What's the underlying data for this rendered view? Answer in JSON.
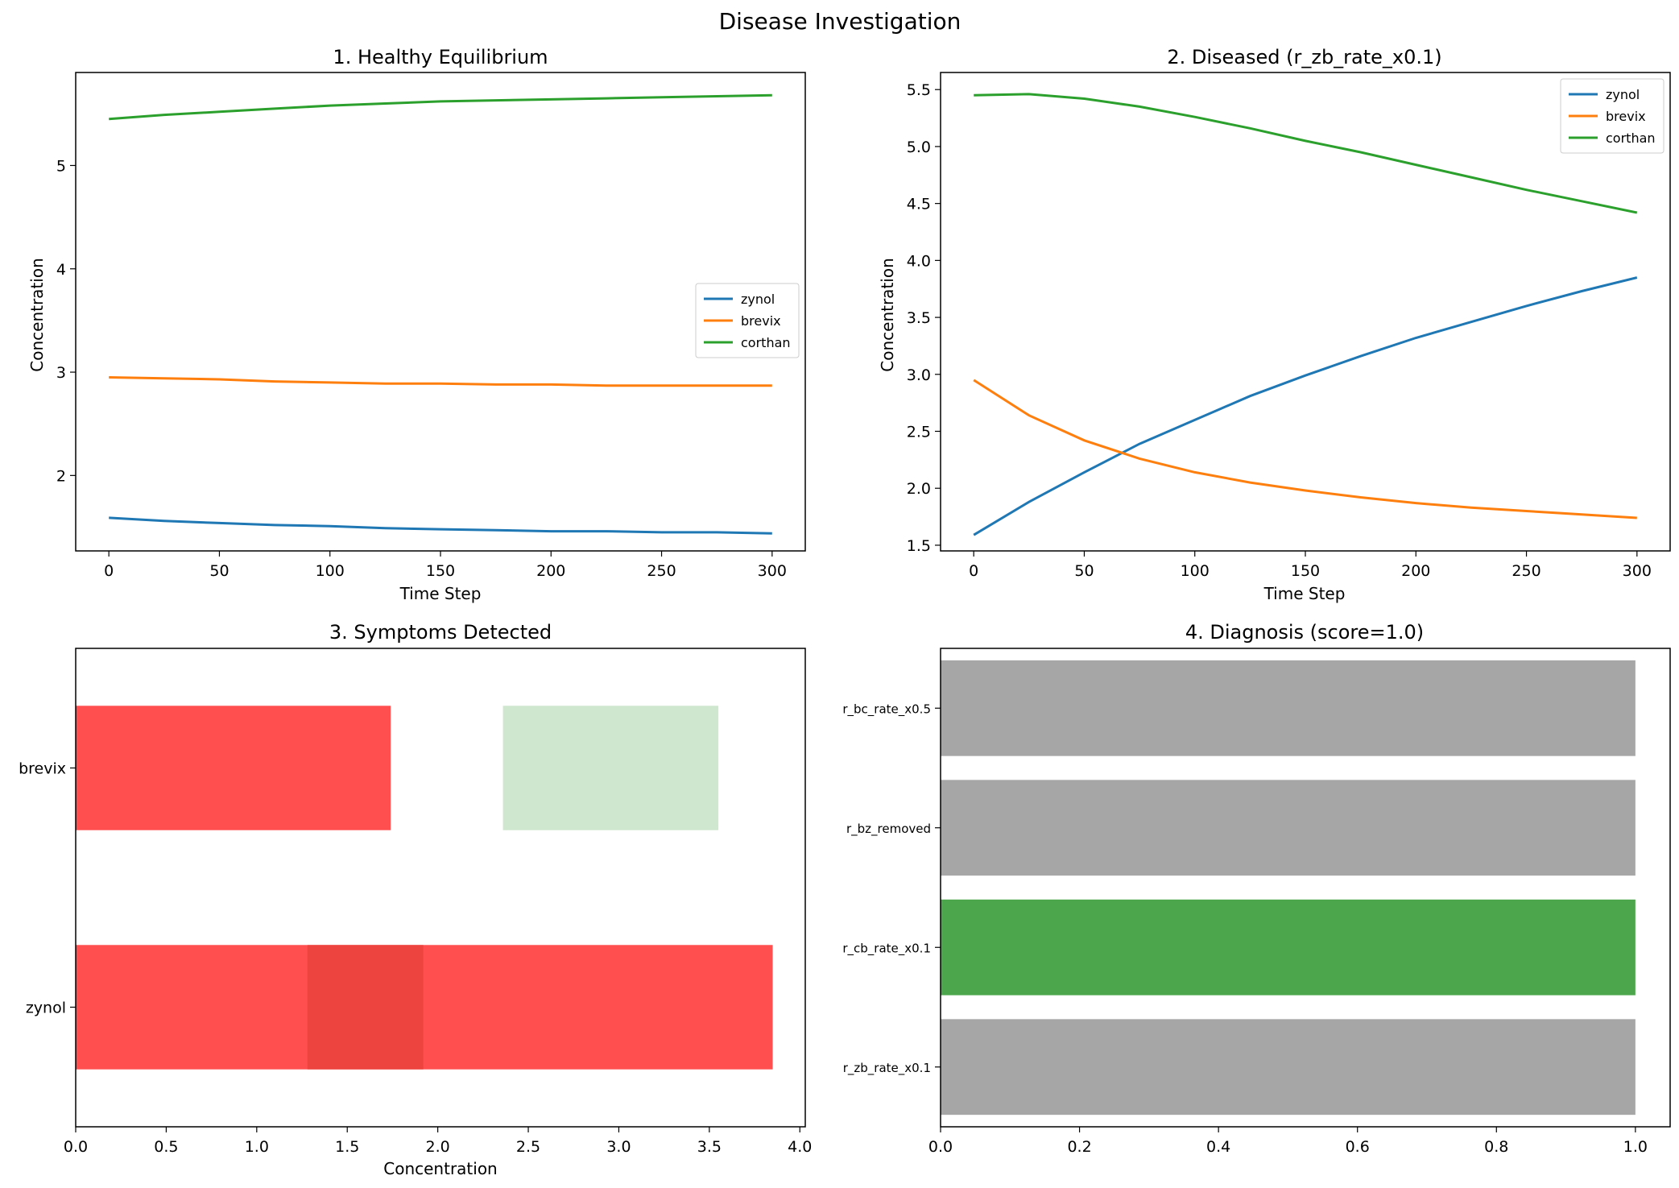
{
  "figure": {
    "title": "Disease Investigation"
  },
  "colors": {
    "zynol": "#1f77b4",
    "brevix": "#ff7f0e",
    "corthan": "#2ca02c",
    "symptom": "#ff4f4f",
    "symptom_overlap": "#ee4440",
    "healthy_range": "#cfe6cf",
    "candidate": "#a6a6a6",
    "correct": "#4ca64c"
  },
  "chart_data": [
    {
      "type": "line",
      "title": "1. Healthy Equilibrium",
      "xlabel": "Time Step",
      "ylabel": "Concentration",
      "xlim": [
        -15,
        315
      ],
      "ylim": [
        1.27,
        5.9
      ],
      "xticks": [
        "0",
        "50",
        "100",
        "150",
        "200",
        "250",
        "300"
      ],
      "yticks": [
        "2",
        "3",
        "4",
        "5"
      ],
      "legend": "center-right",
      "x": [
        0,
        25,
        50,
        75,
        100,
        125,
        150,
        175,
        200,
        225,
        250,
        275,
        300
      ],
      "series": [
        {
          "name": "zynol",
          "color": "zynol",
          "values": [
            1.59,
            1.56,
            1.54,
            1.52,
            1.51,
            1.49,
            1.48,
            1.47,
            1.46,
            1.46,
            1.45,
            1.45,
            1.44
          ]
        },
        {
          "name": "brevix",
          "color": "brevix",
          "values": [
            2.95,
            2.94,
            2.93,
            2.91,
            2.9,
            2.89,
            2.89,
            2.88,
            2.88,
            2.87,
            2.87,
            2.87,
            2.87
          ]
        },
        {
          "name": "corthan",
          "color": "corthan",
          "values": [
            5.45,
            5.49,
            5.52,
            5.55,
            5.58,
            5.6,
            5.62,
            5.63,
            5.64,
            5.65,
            5.66,
            5.67,
            5.68
          ]
        }
      ]
    },
    {
      "type": "line",
      "title": "2. Diseased (r_zb_rate_x0.1)",
      "xlabel": "Time Step",
      "ylabel": "Concentration",
      "xlim": [
        -15,
        315
      ],
      "ylim": [
        1.45,
        5.65
      ],
      "xticks": [
        "0",
        "50",
        "100",
        "150",
        "200",
        "250",
        "300"
      ],
      "yticks": [
        "1.5",
        "2.0",
        "2.5",
        "3.0",
        "3.5",
        "4.0",
        "4.5",
        "5.0",
        "5.5"
      ],
      "legend": "top-right",
      "x": [
        0,
        25,
        50,
        75,
        100,
        125,
        150,
        175,
        200,
        225,
        250,
        275,
        300
      ],
      "series": [
        {
          "name": "zynol",
          "color": "zynol",
          "values": [
            1.59,
            1.88,
            2.14,
            2.39,
            2.6,
            2.81,
            2.99,
            3.16,
            3.32,
            3.46,
            3.6,
            3.73,
            3.85
          ]
        },
        {
          "name": "brevix",
          "color": "brevix",
          "values": [
            2.95,
            2.64,
            2.42,
            2.26,
            2.14,
            2.05,
            1.98,
            1.92,
            1.87,
            1.83,
            1.8,
            1.77,
            1.74
          ]
        },
        {
          "name": "corthan",
          "color": "corthan",
          "values": [
            5.45,
            5.46,
            5.42,
            5.35,
            5.26,
            5.16,
            5.05,
            4.95,
            4.84,
            4.73,
            4.62,
            4.52,
            4.42
          ]
        }
      ]
    },
    {
      "type": "bar",
      "orientation": "horizontal",
      "title": "3. Symptoms Detected",
      "xlabel": "Concentration",
      "ylabel": "",
      "xlim": [
        0,
        4.03
      ],
      "xticks": [
        "0.0",
        "0.5",
        "1.0",
        "1.5",
        "2.0",
        "2.5",
        "3.0",
        "3.5",
        "4.0"
      ],
      "categories": [
        "brevix",
        "zynol"
      ],
      "bars": [
        {
          "category": "brevix",
          "start": 0,
          "end": 1.74,
          "color": "symptom"
        },
        {
          "category": "brevix",
          "start": 2.36,
          "end": 3.55,
          "color": "healthy_range"
        },
        {
          "category": "zynol",
          "start": 0,
          "end": 3.85,
          "color": "symptom"
        },
        {
          "category": "zynol",
          "start": 1.28,
          "end": 1.92,
          "color": "symptom_overlap"
        }
      ]
    },
    {
      "type": "bar",
      "orientation": "horizontal",
      "title": "4. Diagnosis (score=1.0)",
      "xlabel": "",
      "ylabel": "",
      "xlim": [
        0,
        1.05
      ],
      "xticks": [
        "0.0",
        "0.2",
        "0.4",
        "0.6",
        "0.8",
        "1.0"
      ],
      "categories": [
        "r_bc_rate_x0.5",
        "r_bz_removed",
        "r_cb_rate_x0.1",
        "r_zb_rate_x0.1"
      ],
      "values": [
        1.0,
        1.0,
        1.0,
        1.0
      ],
      "bar_colors": [
        "candidate",
        "candidate",
        "correct",
        "candidate"
      ]
    }
  ]
}
